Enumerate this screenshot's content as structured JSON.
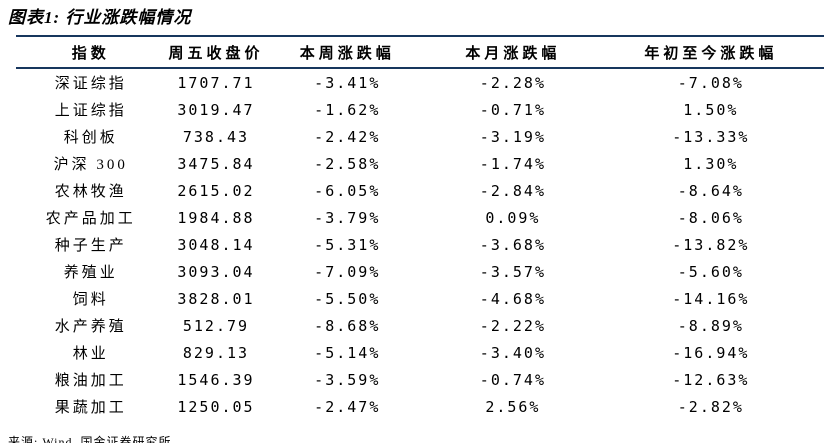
{
  "title": "图表1: 行业涨跌幅情况",
  "source": "来源: Wind, 国金证券研究所",
  "colors": {
    "border_dark": "#17365D",
    "border_light": "#9DBAD7",
    "text": "#000000",
    "background": "#FFFFFF"
  },
  "table": {
    "headers": [
      "指数",
      "周五收盘价",
      "本周涨跌幅",
      "本月涨跌幅",
      "年初至今涨跌幅"
    ],
    "rows": [
      {
        "name": "深证综指",
        "close": "1707.71",
        "week": "-3.41%",
        "month": "-2.28%",
        "ytd": "-7.08%"
      },
      {
        "name": "上证综指",
        "close": "3019.47",
        "week": "-1.62%",
        "month": "-0.71%",
        "ytd": "1.50%"
      },
      {
        "name": "科创板",
        "close": "738.43",
        "week": "-2.42%",
        "month": "-3.19%",
        "ytd": "-13.33%"
      },
      {
        "name": "沪深 300",
        "close": "3475.84",
        "week": "-2.58%",
        "month": "-1.74%",
        "ytd": "1.30%"
      },
      {
        "name": "农林牧渔",
        "close": "2615.02",
        "week": "-6.05%",
        "month": "-2.84%",
        "ytd": "-8.64%"
      },
      {
        "name": "农产品加工",
        "close": "1984.88",
        "week": "-3.79%",
        "month": "0.09%",
        "ytd": "-8.06%"
      },
      {
        "name": "种子生产",
        "close": "3048.14",
        "week": "-5.31%",
        "month": "-3.68%",
        "ytd": "-13.82%"
      },
      {
        "name": "养殖业",
        "close": "3093.04",
        "week": "-7.09%",
        "month": "-3.57%",
        "ytd": "-5.60%"
      },
      {
        "name": "饲料",
        "close": "3828.01",
        "week": "-5.50%",
        "month": "-4.68%",
        "ytd": "-14.16%"
      },
      {
        "name": "水产养殖",
        "close": "512.79",
        "week": "-8.68%",
        "month": "-2.22%",
        "ytd": "-8.89%"
      },
      {
        "name": "林业",
        "close": "829.13",
        "week": "-5.14%",
        "month": "-3.40%",
        "ytd": "-16.94%"
      },
      {
        "name": "粮油加工",
        "close": "1546.39",
        "week": "-3.59%",
        "month": "-0.74%",
        "ytd": "-12.63%"
      },
      {
        "name": "果蔬加工",
        "close": "1250.05",
        "week": "-2.47%",
        "month": "2.56%",
        "ytd": "-2.82%"
      }
    ]
  }
}
